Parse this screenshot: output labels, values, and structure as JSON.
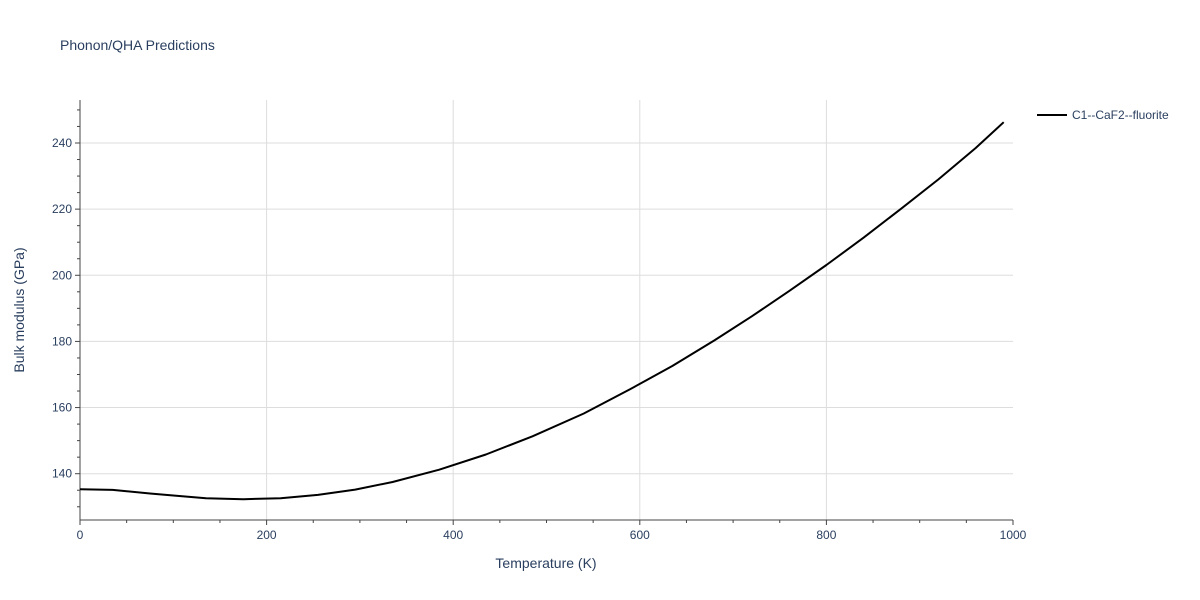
{
  "chart_data": {
    "type": "line",
    "title": "Phonon/QHA Predictions",
    "xlabel": "Temperature (K)",
    "ylabel": "Bulk modulus (GPa)",
    "xlim": [
      0,
      1000
    ],
    "ylim": [
      126,
      253
    ],
    "x_ticks": [
      0,
      200,
      400,
      600,
      800,
      1000
    ],
    "y_ticks": [
      140,
      160,
      180,
      200,
      220,
      240
    ],
    "x_minor_step": 50,
    "y_minor_step": 5,
    "grid": true,
    "legend_position": "top-right",
    "series": [
      {
        "name": "C1--CaF2--fluorite",
        "color": "#000000",
        "x": [
          0,
          35,
          50,
          75,
          100,
          135,
          175,
          215,
          255,
          295,
          335,
          385,
          435,
          485,
          540,
          590,
          635,
          680,
          720,
          760,
          800,
          840,
          880,
          920,
          960,
          990
        ],
        "y": [
          135.3,
          135.1,
          134.7,
          134.0,
          133.4,
          132.6,
          132.3,
          132.6,
          133.6,
          135.2,
          137.5,
          141.2,
          145.8,
          151.3,
          158.2,
          165.6,
          172.6,
          180.3,
          187.6,
          195.2,
          203.1,
          211.4,
          220.1,
          229.0,
          238.5,
          246.3
        ]
      }
    ]
  }
}
